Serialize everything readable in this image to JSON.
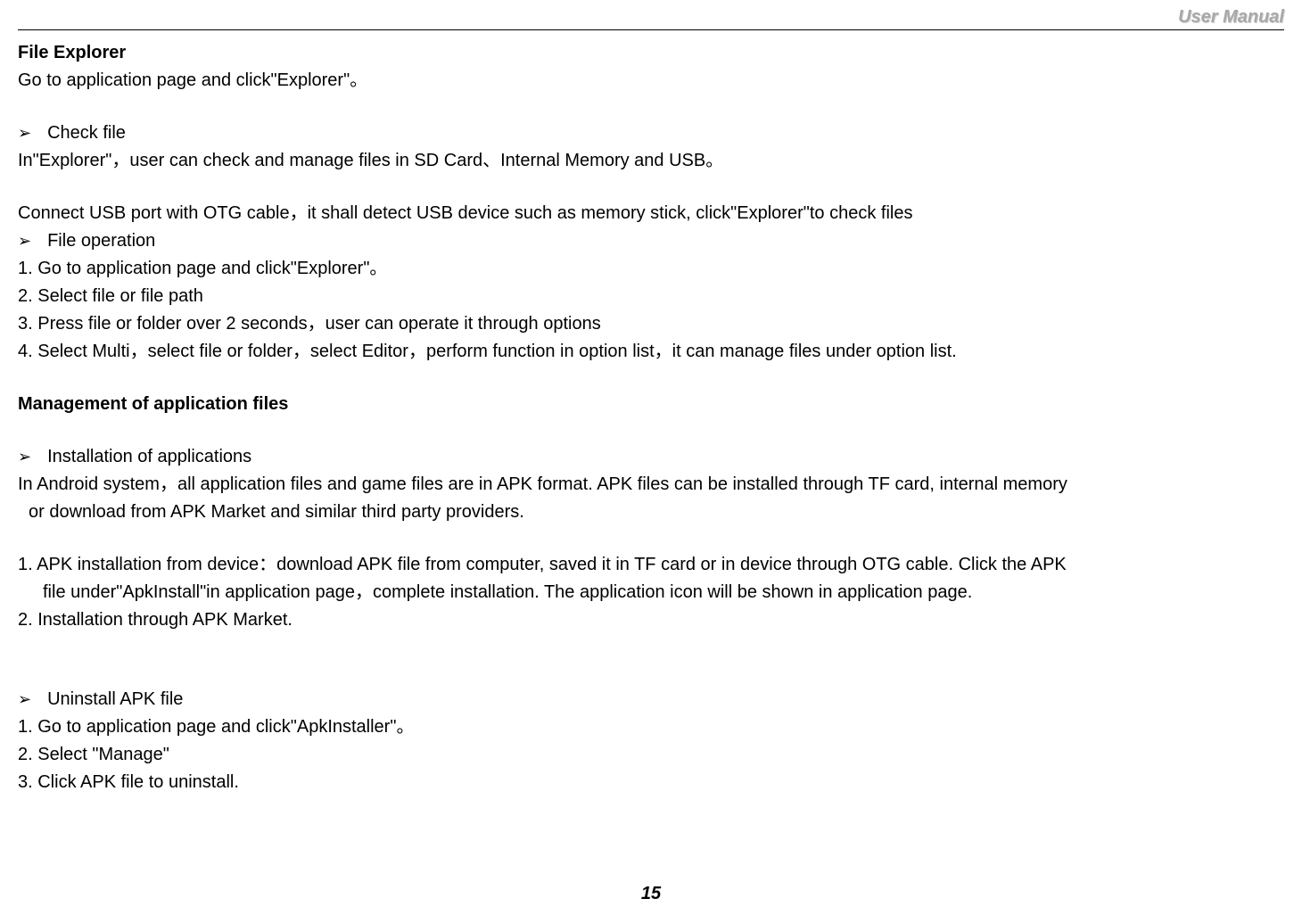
{
  "header": {
    "title": "User Manual"
  },
  "content": {
    "section1_title": "File Explorer",
    "section1_intro": "Go to application page and click\"Explorer\"。",
    "bullet1": "Check file",
    "line1": "In\"Explorer\"，user can check and manage files in SD Card、Internal Memory and USB。",
    "line2": "Connect USB port with OTG cable，it shall detect USB device such as memory stick, click\"Explorer\"to check files",
    "bullet2": "File operation",
    "step1": "1. Go to application page and click\"Explorer\"。",
    "step2": "2. Select file or file path",
    "step3": "3. Press file or folder over 2 seconds，user can operate it through options",
    "step4": "4. Select Multi，select file or folder，select Editor，perform function in option list，it can manage files under option list.",
    "section2_title": "Management of application files",
    "bullet3": "Installation of applications",
    "line3": "In Android system，all application files and game files are in APK format. APK files can be installed through TF card, internal memory",
    "line3b": " or download from APK Market and similar third party providers.",
    "step5a": "1. APK installation from device：download APK file from computer, saved it in TF card or in device through OTG cable. Click the APK",
    "step5b": "file under\"ApkInstall\"in application page，complete installation. The application icon will be shown in application page.",
    "step6": "2. Installation through APK Market.",
    "bullet4": "Uninstall APK file",
    "step7": "1. Go to application page and click\"ApkInstaller\"。",
    "step8": "2. Select \"Manage\"",
    "step9": "3. Click APK file to uninstall."
  },
  "footer": {
    "page_number": "15"
  },
  "styling": {
    "font_size": 20,
    "line_height": 1.55,
    "text_color": "#000000",
    "header_color": "#a8a8a8",
    "background_color": "#ffffff",
    "bullet_char": "➢"
  }
}
